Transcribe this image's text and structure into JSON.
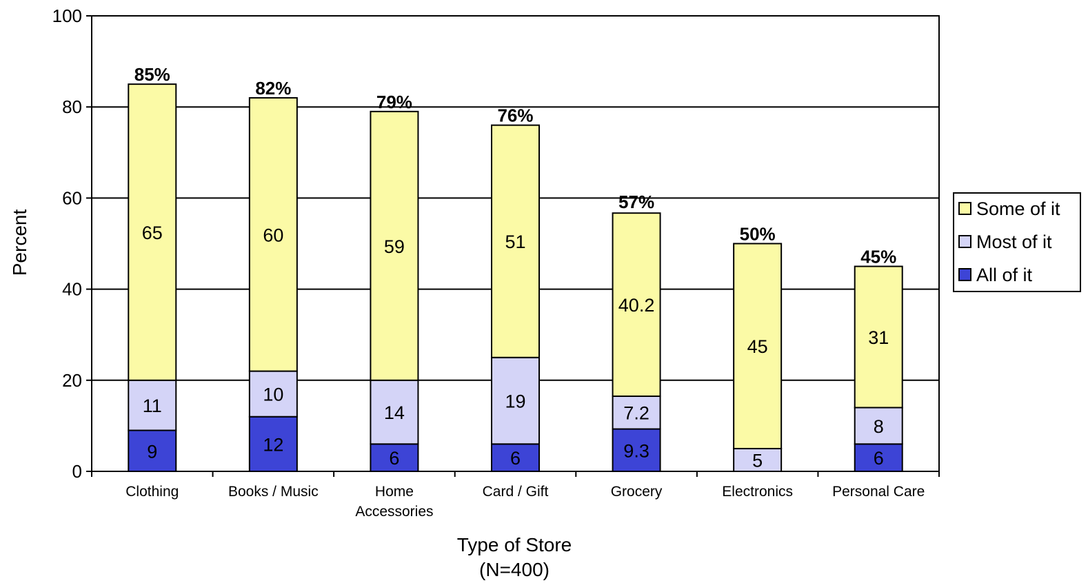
{
  "chart_data": {
    "type": "bar",
    "stacked": true,
    "categories": [
      [
        "Clothing"
      ],
      [
        "Books / Music"
      ],
      [
        "Home",
        "Accessories"
      ],
      [
        "Card / Gift"
      ],
      [
        "Grocery"
      ],
      [
        "Electronics"
      ],
      [
        "Personal Care"
      ]
    ],
    "series": [
      {
        "name": "All of it",
        "color": "#3d44d6",
        "values": [
          9,
          12,
          6,
          6,
          9.3,
          0,
          6
        ],
        "labels": [
          "9",
          "12",
          "6",
          "6",
          "9.3",
          "",
          "6"
        ]
      },
      {
        "name": "Most of it",
        "color": "#d4d4f7",
        "values": [
          11,
          10,
          14,
          19,
          7.2,
          5,
          8
        ],
        "labels": [
          "11",
          "10",
          "14",
          "19",
          "7.2",
          "5",
          "8"
        ]
      },
      {
        "name": "Some of it",
        "color": "#fbfaa6",
        "values": [
          65,
          60,
          59,
          51,
          40.2,
          45,
          31
        ],
        "labels": [
          "65",
          "60",
          "59",
          "51",
          "40.2",
          "45",
          "31"
        ]
      }
    ],
    "totals": [
      "85%",
      "82%",
      "79%",
      "76%",
      "57%",
      "50%",
      "45%"
    ],
    "total_values": [
      85,
      82,
      79,
      76,
      57,
      50,
      45
    ],
    "ylim": [
      0,
      100
    ],
    "yticks": [
      0,
      20,
      40,
      60,
      80,
      100
    ],
    "ylabel": "Percent",
    "xlabel": [
      "Type of Store",
      "(N=400)"
    ],
    "grid": true,
    "legend": {
      "placement": "right",
      "order": [
        "Some of it",
        "Most of it",
        "All of it"
      ]
    }
  }
}
